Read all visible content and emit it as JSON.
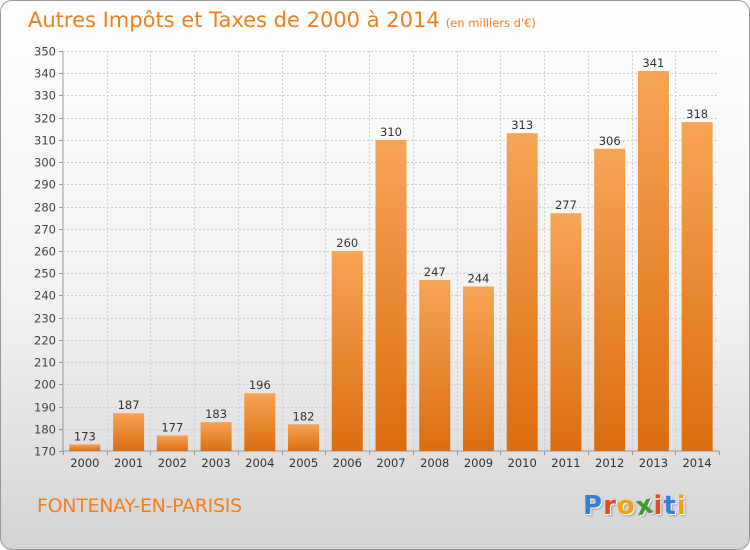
{
  "header": {
    "title": "Autres Impôts et Taxes de 2000 à 2014",
    "subtitle": "(en milliers d'€)"
  },
  "footer": {
    "place": "FONTENAY-EN-PARISIS",
    "brand": "Proxiti",
    "brand_colors": [
      "#3a7fd5",
      "#e8491d",
      "#f2a20f",
      "#3a9b2f",
      "#e8491d",
      "#3a7fd5",
      "#f2a20f"
    ]
  },
  "colors": {
    "bar_top": "#f7a456",
    "bar_bottom": "#db6d10",
    "accent": "#f07f1c",
    "grid": "#cfcfcf"
  },
  "chart_data": {
    "type": "bar",
    "categories": [
      "2000",
      "2001",
      "2002",
      "2003",
      "2004",
      "2005",
      "2006",
      "2007",
      "2008",
      "2009",
      "2010",
      "2011",
      "2012",
      "2013",
      "2014"
    ],
    "values": [
      173,
      187,
      177,
      183,
      196,
      182,
      260,
      310,
      247,
      244,
      313,
      277,
      306,
      341,
      318
    ],
    "ylim": [
      170,
      350
    ],
    "ytick_step": 10,
    "grid": true,
    "value_labels": true
  }
}
